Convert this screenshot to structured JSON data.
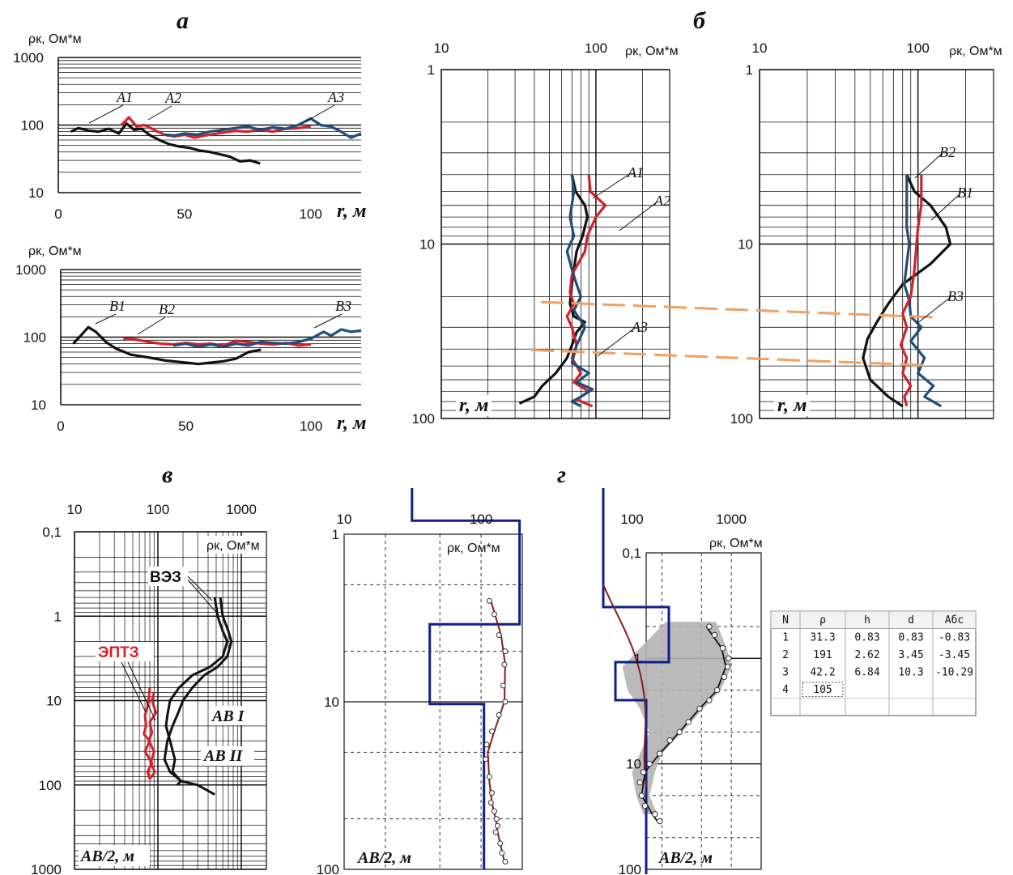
{
  "figure": {
    "panel_labels": [
      "а",
      "б",
      "в",
      "г"
    ]
  },
  "colors": {
    "black": "#111111",
    "red": "#d4202a",
    "blue": "#1f4e79",
    "orange": "#f0a060",
    "navy": "#0d1f8c",
    "darkred": "#8b1a1a",
    "gray": "#b3b3b3"
  },
  "chart_data": [
    {
      "id": "a_top",
      "type": "line",
      "yscale": "log",
      "ylabel": "ρк, Ом*м",
      "xlabel": "r, м",
      "xlim": [
        0,
        120
      ],
      "ylim": [
        10,
        1000
      ],
      "x_ticks": [
        "0",
        "50",
        "100"
      ],
      "y_ticks": [
        "10",
        "100",
        "1000"
      ],
      "series": [
        {
          "name": "A1",
          "color": "#111111",
          "x": [
            5,
            8,
            12,
            16,
            20,
            24,
            27,
            30,
            33,
            36,
            40,
            44,
            48,
            52,
            56,
            60,
            64,
            68,
            72,
            76,
            80
          ],
          "y": [
            80,
            90,
            83,
            80,
            88,
            75,
            105,
            85,
            88,
            72,
            60,
            52,
            48,
            46,
            42,
            40,
            37,
            34,
            29,
            30,
            27
          ]
        },
        {
          "name": "A2",
          "color": "#d4202a",
          "x": [
            25,
            28,
            31,
            34,
            38,
            42,
            46,
            50,
            54,
            58,
            62,
            66,
            70,
            75,
            80,
            85,
            90,
            95,
            100
          ],
          "y": [
            100,
            130,
            95,
            100,
            85,
            72,
            68,
            72,
            65,
            70,
            74,
            78,
            82,
            80,
            85,
            80,
            88,
            90,
            95
          ]
        },
        {
          "name": "A3",
          "color": "#1f4e79",
          "x": [
            42,
            46,
            50,
            55,
            60,
            65,
            70,
            75,
            80,
            85,
            90,
            95,
            100,
            104,
            108,
            112,
            116,
            120
          ],
          "y": [
            72,
            70,
            75,
            72,
            80,
            85,
            90,
            95,
            85,
            92,
            88,
            100,
            125,
            100,
            95,
            80,
            65,
            75
          ]
        }
      ],
      "annotations": [
        "A1",
        "A2",
        "A3"
      ]
    },
    {
      "id": "a_bottom",
      "type": "line",
      "yscale": "log",
      "ylabel": "ρк, Ом*м",
      "xlabel": "r, м",
      "xlim": [
        0,
        120
      ],
      "ylim": [
        10,
        1000
      ],
      "x_ticks": [
        "0",
        "50",
        "100"
      ],
      "y_ticks": [
        "10",
        "100",
        "1000"
      ],
      "series": [
        {
          "name": "B1",
          "color": "#111111",
          "x": [
            5,
            8,
            11,
            14,
            18,
            22,
            28,
            35,
            42,
            50,
            55,
            60,
            65,
            70,
            75,
            80
          ],
          "y": [
            80,
            105,
            140,
            120,
            85,
            68,
            55,
            50,
            45,
            42,
            40,
            42,
            44,
            48,
            60,
            65
          ]
        },
        {
          "name": "B2",
          "color": "#d4202a",
          "x": [
            25,
            30,
            35,
            40,
            45,
            50,
            55,
            60,
            65,
            70,
            75,
            80,
            85,
            90,
            95,
            100
          ],
          "y": [
            95,
            92,
            85,
            80,
            78,
            82,
            78,
            80,
            75,
            88,
            85,
            80,
            78,
            82,
            75,
            78
          ]
        },
        {
          "name": "B3",
          "color": "#1f4e79",
          "x": [
            45,
            50,
            55,
            60,
            65,
            70,
            75,
            80,
            85,
            90,
            95,
            100,
            105,
            108,
            112,
            116,
            120
          ],
          "y": [
            75,
            80,
            72,
            78,
            72,
            80,
            75,
            85,
            82,
            80,
            85,
            95,
            120,
            105,
            130,
            120,
            125
          ]
        }
      ],
      "annotations": [
        "B1",
        "B2",
        "B3"
      ]
    },
    {
      "id": "b_left",
      "type": "line",
      "xscale": "log",
      "yscale": "log",
      "xlabel": "ρк, Ом*м",
      "ylabel": "r, м",
      "xlim": [
        10,
        300
      ],
      "ylim": [
        1,
        100
      ],
      "x_ticks": [
        "10",
        "100"
      ],
      "y_ticks": [
        "1",
        "10",
        "100"
      ],
      "series": [
        {
          "name": "A1",
          "color": "#111111",
          "rho": [
            70,
            74,
            85,
            88,
            82,
            75,
            72,
            70,
            68,
            72,
            85,
            75,
            70,
            65,
            55,
            45,
            40,
            32
          ],
          "depth": [
            4,
            5,
            6,
            7,
            9,
            11,
            14,
            17,
            22,
            26,
            28,
            32,
            38,
            45,
            55,
            65,
            75,
            82
          ]
        },
        {
          "name": "A2",
          "color": "#d4202a",
          "rho": [
            90,
            92,
            115,
            100,
            88,
            85,
            70,
            68,
            72,
            65,
            70,
            75,
            70,
            80,
            72,
            90,
            75,
            95
          ],
          "depth": [
            4,
            5,
            6,
            7,
            9,
            11,
            15,
            19,
            22,
            26,
            30,
            38,
            45,
            55,
            62,
            70,
            78,
            85
          ]
        },
        {
          "name": "A3",
          "color": "#1f4e79",
          "rho": [
            70,
            72,
            68,
            72,
            65,
            70,
            75,
            80,
            72,
            85,
            75,
            70,
            90,
            75,
            95,
            80,
            70,
            80
          ],
          "depth": [
            4,
            5,
            7,
            9,
            11,
            14,
            17,
            20,
            24,
            30,
            38,
            48,
            55,
            62,
            68,
            75,
            80,
            85
          ]
        }
      ],
      "annotations": [
        "A1",
        "A2",
        "A3"
      ],
      "layer_boundaries_depth": [
        21.5,
        40.5
      ]
    },
    {
      "id": "b_right",
      "type": "line",
      "xscale": "log",
      "yscale": "log",
      "xlabel": "ρк, Ом*м",
      "ylabel": "r, м",
      "xlim": [
        10,
        300
      ],
      "ylim": [
        1,
        100
      ],
      "x_ticks": [
        "10",
        "100"
      ],
      "y_ticks": [
        "1",
        "10",
        "100"
      ],
      "series": [
        {
          "name": "B1",
          "color": "#111111",
          "rho": [
            85,
            95,
            120,
            150,
            160,
            120,
            80,
            65,
            55,
            48,
            45,
            50,
            65,
            80
          ],
          "depth": [
            4,
            5,
            6,
            8,
            10,
            13,
            17,
            22,
            28,
            35,
            45,
            60,
            75,
            85
          ]
        },
        {
          "name": "B2",
          "color": "#1f4e79",
          "rho": [
            85,
            85,
            85,
            88,
            85,
            82,
            88,
            90,
            105,
            90,
            110,
            100,
            125,
            110,
            140
          ],
          "depth": [
            4,
            6,
            8,
            10,
            13,
            17,
            21,
            26,
            30,
            36,
            45,
            55,
            65,
            75,
            85
          ]
        },
        {
          "name": "B3",
          "color": "#d4202a",
          "rho": [
            105,
            105,
            100,
            98,
            95,
            90,
            80,
            85,
            78,
            85,
            80,
            90,
            82,
            85
          ],
          "depth": [
            4,
            6,
            8,
            10,
            14,
            20,
            25,
            30,
            38,
            45,
            55,
            65,
            75,
            85
          ]
        }
      ],
      "annotations": [
        "B2",
        "B1",
        "B3"
      ]
    },
    {
      "id": "v",
      "type": "line",
      "xscale": "log",
      "yscale": "log",
      "xlabel": "ρк, Ом*м",
      "ylabel": "AB/2, м",
      "xlim": [
        10,
        2000
      ],
      "ylim": [
        0.1,
        1000
      ],
      "x_ticks": [
        "10",
        "100",
        "1000"
      ],
      "y_ticks": [
        "0,1",
        "1",
        "10",
        "100",
        "1000"
      ],
      "series": [
        {
          "name": "ВЭЗ AB I",
          "color": "#111111",
          "rho": [
            480,
            520,
            600,
            680,
            600,
            420,
            260,
            180,
            140,
            130,
            125,
            140,
            160,
            150,
            190,
            300,
            480
          ],
          "ab2": [
            0.6,
            1,
            1.5,
            2,
            3,
            4,
            5,
            7,
            10,
            15,
            20,
            30,
            50,
            70,
            90,
            100,
            130
          ]
        },
        {
          "name": "ВЭЗ AB II",
          "color": "#111111",
          "rho": [
            560,
            600,
            700,
            760,
            680,
            520,
            360,
            260,
            200,
            170,
            150,
            130,
            120,
            140,
            190,
            170
          ],
          "ab2": [
            0.6,
            1,
            1.5,
            2,
            3,
            4,
            5,
            7,
            10,
            15,
            20,
            30,
            50,
            70,
            90,
            100
          ]
        },
        {
          "name": "ЭПТЗ 1",
          "color": "#d4202a",
          "rho": [
            80,
            78,
            75,
            70,
            72,
            68,
            80,
            70,
            85,
            75,
            80
          ],
          "ab2": [
            7,
            9,
            12,
            15,
            20,
            25,
            30,
            40,
            55,
            70,
            85
          ]
        },
        {
          "name": "ЭПТЗ 2",
          "color": "#d4202a",
          "rho": [
            90,
            85,
            95,
            80,
            85,
            78,
            90,
            82,
            92,
            80
          ],
          "ab2": [
            8,
            10,
            14,
            18,
            24,
            30,
            40,
            55,
            70,
            85
          ]
        }
      ],
      "annotations": [
        "ВЭЗ",
        "ЭПТЗ",
        "AB I",
        "AB II"
      ]
    },
    {
      "id": "g_left",
      "type": "line",
      "xscale": "log",
      "yscale": "log",
      "xlabel": "ρк, Ом*м",
      "ylabel": "AB/2, м",
      "xlim": [
        10,
        200
      ],
      "ylim": [
        1,
        100
      ],
      "x_ticks": [
        "10",
        "100"
      ],
      "y_ticks": [
        "1",
        "10",
        "100"
      ],
      "model_layers": [
        {
          "rho": 31.3,
          "top": 0,
          "bottom": 0.83
        },
        {
          "rho": 191,
          "top": 0.83,
          "bottom": 3.45
        },
        {
          "rho": 42.2,
          "top": 3.45,
          "bottom": 10.3
        },
        {
          "rho": 105,
          "top": 10.3,
          "bottom": 100
        }
      ],
      "observed": {
        "ab2": [
          2.5,
          3,
          4,
          5,
          6,
          8,
          10,
          12,
          15,
          18,
          22,
          28,
          35,
          40,
          45,
          50,
          55,
          60,
          70,
          80,
          90
        ],
        "rho": [
          115,
          125,
          135,
          150,
          148,
          145,
          150,
          135,
          120,
          110,
          108,
          115,
          120,
          118,
          125,
          130,
          132,
          128,
          138,
          142,
          150
        ]
      },
      "fitted": {
        "ab2": [
          2.5,
          4,
          6,
          10,
          15,
          20,
          30,
          40,
          50,
          60,
          70,
          90
        ],
        "rho": [
          118,
          140,
          150,
          148,
          125,
          112,
          115,
          120,
          128,
          132,
          138,
          148
        ]
      }
    },
    {
      "id": "g_right",
      "type": "line",
      "xscale": "log",
      "yscale": "log",
      "xlabel": "ρк, Ом*м",
      "ylabel": "AB/2, м",
      "xlim": [
        10,
        2000
      ],
      "ylim": [
        0.1,
        100
      ],
      "x_ticks": [
        "100",
        "1000"
      ],
      "y_ticks": [
        "0,1",
        "1",
        "10",
        "100"
      ],
      "observed": {
        "ab2": [
          0.5,
          0.6,
          0.8,
          1,
          1.2,
          1.5,
          2,
          2.5,
          3,
          4,
          5,
          6,
          8,
          10,
          12,
          15,
          20,
          25,
          30,
          35
        ],
        "rho": [
          600,
          680,
          820,
          940,
          920,
          850,
          720,
          600,
          480,
          370,
          300,
          240,
          190,
          150,
          130,
          120,
          125,
          135,
          170,
          190
        ]
      },
      "fitted": {
        "ab2": [
          0.5,
          0.8,
          1.2,
          2,
          3,
          5,
          8,
          12,
          20,
          30,
          35
        ],
        "rho": [
          560,
          800,
          880,
          720,
          480,
          300,
          190,
          135,
          125,
          160,
          180
        ]
      }
    }
  ],
  "table": {
    "headers": [
      "N",
      "ρ",
      "h",
      "d",
      "Абс"
    ],
    "rows": [
      [
        "1",
        "31.3",
        "0.83",
        "0.83",
        "-0.83"
      ],
      [
        "2",
        "191",
        "2.62",
        "3.45",
        "-3.45"
      ],
      [
        "3",
        "42.2",
        "6.84",
        "10.3",
        "-10.29"
      ],
      [
        "4",
        "105",
        "",
        "",
        ""
      ],
      [
        "",
        "",
        "",
        "",
        ""
      ]
    ]
  }
}
